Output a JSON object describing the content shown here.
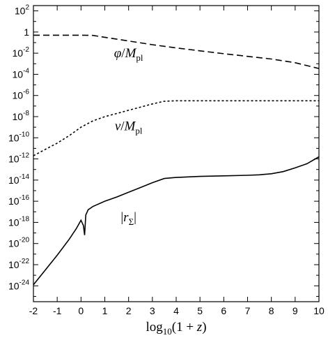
{
  "chart_data": {
    "type": "line",
    "xlabel": "log₁₀(1 + z)",
    "x_ticks": [
      -2,
      -1,
      0,
      1,
      2,
      3,
      4,
      5,
      6,
      7,
      8,
      9,
      10
    ],
    "xlim": [
      -2,
      10
    ],
    "y_scale": "log",
    "y_ticks_exponent": [
      2,
      0,
      -2,
      -4,
      -6,
      -8,
      -10,
      -12,
      -14,
      -16,
      -18,
      -20,
      -22,
      -24
    ],
    "ylim_exponent": [
      -25.5,
      2.5
    ],
    "grid": false,
    "series": [
      {
        "name": "φ/M_pl",
        "style": "dashed",
        "x": [
          -2,
          0.0,
          0.5,
          1,
          2,
          3,
          4,
          5,
          6,
          7,
          8,
          9,
          10
        ],
        "log10_y": [
          -0.3,
          -0.3,
          -0.32,
          -0.5,
          -0.85,
          -1.2,
          -1.5,
          -1.78,
          -2.05,
          -2.3,
          -2.55,
          -2.9,
          -3.45
        ]
      },
      {
        "name": "v/M_pl",
        "style": "dotted",
        "x": [
          -2,
          -1.5,
          -1,
          -0.5,
          0,
          0.5,
          1,
          1.5,
          2,
          2.5,
          3,
          3.5,
          4,
          6,
          8,
          10
        ],
        "log10_y": [
          -11.7,
          -11.1,
          -10.5,
          -9.8,
          -9.0,
          -8.4,
          -8.0,
          -7.7,
          -7.4,
          -7.1,
          -6.8,
          -6.55,
          -6.5,
          -6.5,
          -6.5,
          -6.5
        ]
      },
      {
        "name": "|r_Σ|",
        "style": "solid",
        "x": [
          -2,
          -1.5,
          -1,
          -0.5,
          -0.2,
          0,
          0.1,
          0.15,
          0.2,
          0.3,
          0.5,
          1,
          1.5,
          2,
          2.5,
          3,
          3.5,
          4,
          5,
          6,
          7,
          7.5,
          8,
          8.5,
          9,
          9.5,
          10
        ],
        "log10_y": [
          -23.9,
          -22.5,
          -21.1,
          -19.6,
          -18.6,
          -17.8,
          -18.3,
          -19.2,
          -17.3,
          -16.8,
          -16.5,
          -16.0,
          -15.6,
          -15.15,
          -14.7,
          -14.25,
          -13.85,
          -13.75,
          -13.65,
          -13.6,
          -13.55,
          -13.5,
          -13.4,
          -13.2,
          -12.85,
          -12.45,
          -11.8
        ]
      }
    ],
    "annotations": [
      {
        "text_italic": "φ",
        "text_sep": "/",
        "text_italic2": "M",
        "sub": "pl",
        "at_x": 2.0,
        "at_log10_y": -2.4
      },
      {
        "text_italic": "v",
        "text_sep": "/",
        "text_italic2": "M",
        "sub": "pl",
        "at_x": 2.0,
        "at_log10_y": -9.3
      },
      {
        "text_plain": "|",
        "text_italic": "r",
        "sub": "Σ",
        "text_plain2": "|",
        "at_x": 2.0,
        "at_log10_y": -17.9
      }
    ]
  }
}
